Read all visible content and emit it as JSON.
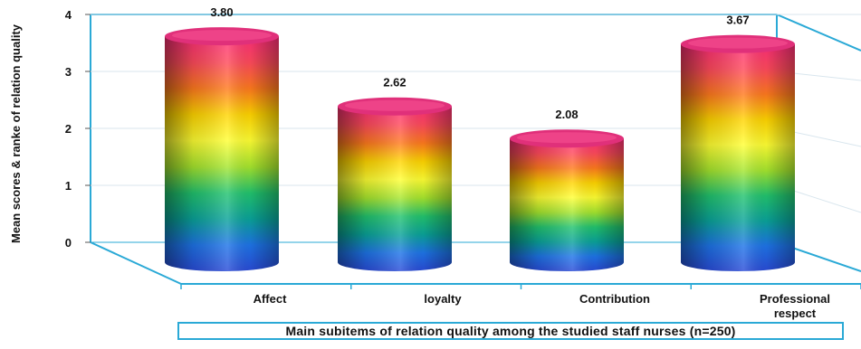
{
  "chart_data": {
    "type": "bar",
    "style": "3d-cylinder",
    "categories": [
      "Affect",
      "loyalty",
      "Contribution",
      "Professional respect"
    ],
    "values": [
      3.8,
      2.62,
      2.08,
      3.67
    ],
    "value_labels": [
      "3.80",
      "2.62",
      "2.08",
      "3.67"
    ],
    "ylabel": "Mean scores & ranke of relation quality",
    "xlabel": "Main subitems of relation quality among the studied staff nurses (n=250)",
    "ylim": [
      0,
      4
    ],
    "yticks": [
      "0",
      "1",
      "2",
      "3",
      "4"
    ],
    "grid": true
  },
  "colors": {
    "frame": "#2aa9d6",
    "grid": "#d9e6ee",
    "gradient": [
      "#ff2d7a",
      "#ff4a5c",
      "#ff7a1e",
      "#ffd400",
      "#ffff33",
      "#a6e62e",
      "#22c46e",
      "#0aa39a",
      "#1e74e8",
      "#2a4bd7"
    ]
  }
}
